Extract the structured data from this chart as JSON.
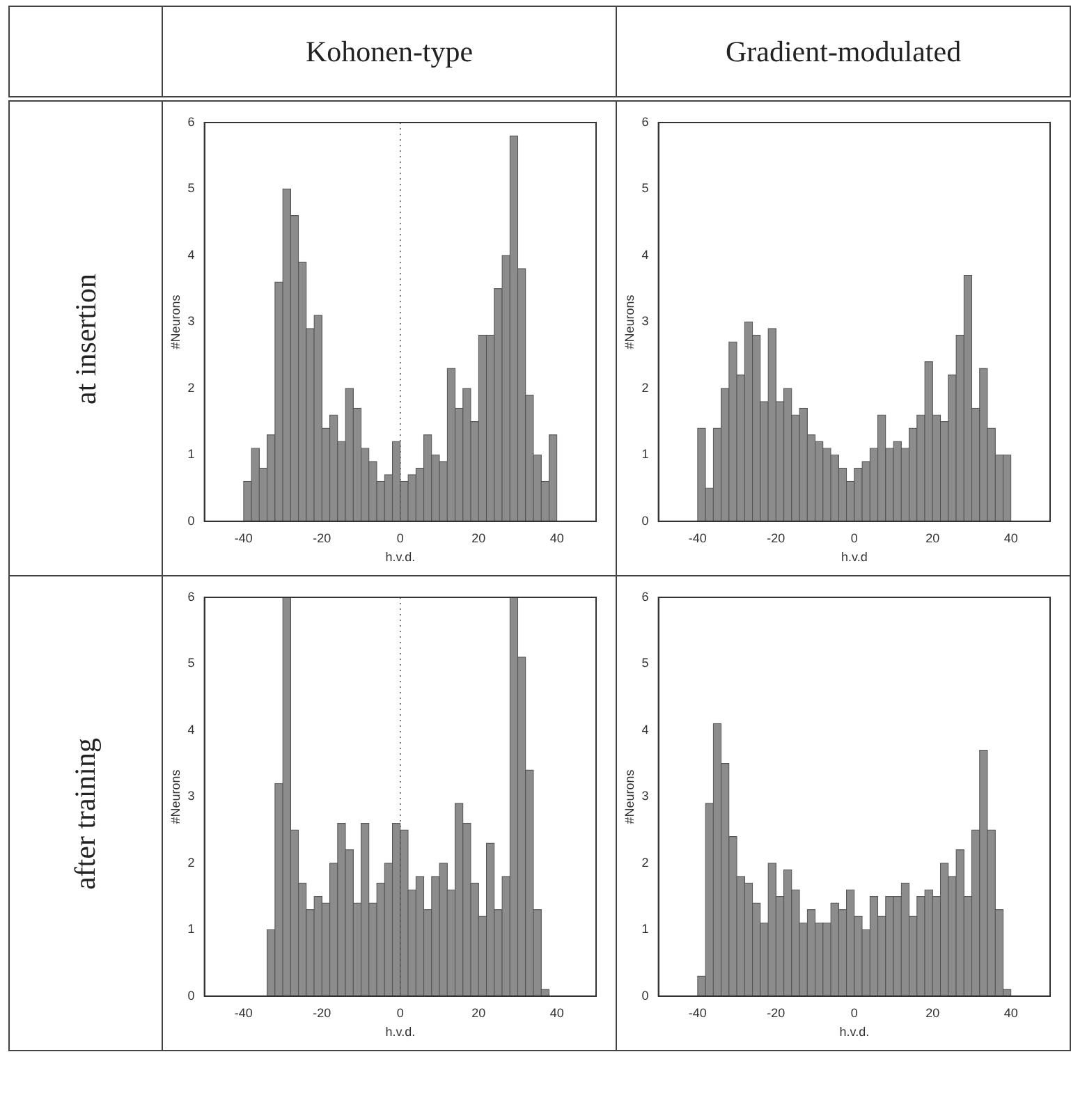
{
  "chart_data": [
    {
      "type": "histogram",
      "title": "Kohonen-type",
      "subtitle": "at insertion",
      "xlabel": "h.v.d.",
      "ylabel": "#Neurons",
      "color": "#8c8c8c",
      "xlim": [
        -50,
        50
      ],
      "xticks": [
        -40,
        -20,
        0,
        20,
        40
      ],
      "ylim": [
        0,
        6
      ],
      "yticks": [
        0,
        1,
        2,
        3,
        4,
        5,
        6
      ],
      "ref_lines": [
        {
          "axis": "x",
          "value": 0,
          "line_style": "dotted"
        }
      ],
      "bins": [
        -40,
        -38,
        -36,
        -34,
        -32,
        -30,
        -28,
        -26,
        -24,
        -22,
        -20,
        -18,
        -16,
        -14,
        -12,
        -10,
        -8,
        -6,
        -4,
        -2,
        0,
        2,
        4,
        6,
        8,
        10,
        12,
        14,
        16,
        18,
        20,
        22,
        24,
        26,
        28,
        30,
        32,
        34,
        36,
        38,
        40
      ],
      "values": [
        0.6,
        1.1,
        0.8,
        1.3,
        3.6,
        5.0,
        4.6,
        3.9,
        2.9,
        3.1,
        1.4,
        1.6,
        1.2,
        2.0,
        1.7,
        1.1,
        0.9,
        0.6,
        0.7,
        1.2,
        0.6,
        0.7,
        0.8,
        1.3,
        1.0,
        0.9,
        2.3,
        1.7,
        2.0,
        1.5,
        2.8,
        2.8,
        3.5,
        4.0,
        5.8,
        3.8,
        1.9,
        1.0,
        0.6,
        1.3
      ]
    },
    {
      "type": "histogram",
      "title": "Gradient-modulated",
      "xlabel": "h.v.d",
      "ylabel": "#Neurons",
      "color": "#8c8c8c",
      "xlim": [
        -50,
        50
      ],
      "xticks": [
        -40,
        -20,
        0,
        20,
        40
      ],
      "ylim": [
        0,
        6
      ],
      "yticks": [
        0,
        1,
        2,
        3,
        4,
        5,
        6
      ],
      "bins": [
        -40,
        -38,
        -36,
        -34,
        -32,
        -30,
        -28,
        -26,
        -24,
        -22,
        -20,
        -18,
        -16,
        -14,
        -12,
        -10,
        -8,
        -6,
        -4,
        -2,
        0,
        2,
        4,
        6,
        8,
        10,
        12,
        14,
        16,
        18,
        20,
        22,
        24,
        26,
        28,
        30,
        32,
        34,
        36,
        38,
        40
      ],
      "values": [
        1.4,
        0.5,
        1.4,
        2.0,
        2.7,
        2.2,
        3.0,
        2.8,
        1.8,
        2.9,
        1.8,
        2.0,
        1.6,
        1.7,
        1.3,
        1.2,
        1.1,
        1.0,
        0.8,
        0.6,
        0.8,
        0.9,
        1.1,
        1.6,
        1.1,
        1.2,
        1.1,
        1.4,
        1.6,
        2.4,
        1.6,
        1.5,
        2.2,
        2.8,
        3.7,
        1.7,
        2.3,
        1.4,
        1.0,
        1.0
      ]
    },
    {
      "type": "histogram",
      "subtitle": "after training",
      "xlabel": "h.v.d.",
      "ylabel": "#Neurons",
      "color": "#8c8c8c",
      "xlim": [
        -50,
        50
      ],
      "xticks": [
        -40,
        -20,
        0,
        20,
        40
      ],
      "ylim": [
        0,
        6
      ],
      "yticks": [
        0,
        1,
        2,
        3,
        4,
        5,
        6
      ],
      "ref_lines": [
        {
          "axis": "x",
          "value": 0,
          "line_style": "dotted"
        }
      ],
      "bins": [
        -40,
        -38,
        -36,
        -34,
        -32,
        -30,
        -28,
        -26,
        -24,
        -22,
        -20,
        -18,
        -16,
        -14,
        -12,
        -10,
        -8,
        -6,
        -4,
        -2,
        0,
        2,
        4,
        6,
        8,
        10,
        12,
        14,
        16,
        18,
        20,
        22,
        24,
        26,
        28,
        30,
        32,
        34,
        36,
        38,
        40
      ],
      "values": [
        0,
        0,
        0,
        1.0,
        3.2,
        6.0,
        2.5,
        1.7,
        1.3,
        1.5,
        1.4,
        2.0,
        2.6,
        2.2,
        1.4,
        2.6,
        1.4,
        1.7,
        2.0,
        2.6,
        2.5,
        1.6,
        1.8,
        1.3,
        1.8,
        2.0,
        1.6,
        2.9,
        2.6,
        1.7,
        1.2,
        2.3,
        1.3,
        1.8,
        6.0,
        5.1,
        3.4,
        1.3,
        0.1,
        0
      ]
    },
    {
      "type": "histogram",
      "xlabel": "h.v.d.",
      "ylabel": "#Neurons",
      "color": "#8c8c8c",
      "xlim": [
        -50,
        50
      ],
      "xticks": [
        -40,
        -20,
        0,
        20,
        40
      ],
      "ylim": [
        0,
        6
      ],
      "yticks": [
        0,
        1,
        2,
        3,
        4,
        5,
        6
      ],
      "bins": [
        -40,
        -38,
        -36,
        -34,
        -32,
        -30,
        -28,
        -26,
        -24,
        -22,
        -20,
        -18,
        -16,
        -14,
        -12,
        -10,
        -8,
        -6,
        -4,
        -2,
        0,
        2,
        4,
        6,
        8,
        10,
        12,
        14,
        16,
        18,
        20,
        22,
        24,
        26,
        28,
        30,
        32,
        34,
        36,
        38,
        40
      ],
      "values": [
        0.3,
        2.9,
        4.1,
        3.5,
        2.4,
        1.8,
        1.7,
        1.4,
        1.1,
        2.0,
        1.5,
        1.9,
        1.6,
        1.1,
        1.3,
        1.1,
        1.1,
        1.4,
        1.3,
        1.6,
        1.2,
        1.0,
        1.5,
        1.2,
        1.5,
        1.5,
        1.7,
        1.2,
        1.5,
        1.6,
        1.5,
        2.0,
        1.8,
        2.2,
        1.5,
        2.5,
        3.7,
        2.5,
        1.3,
        0.1
      ]
    }
  ]
}
